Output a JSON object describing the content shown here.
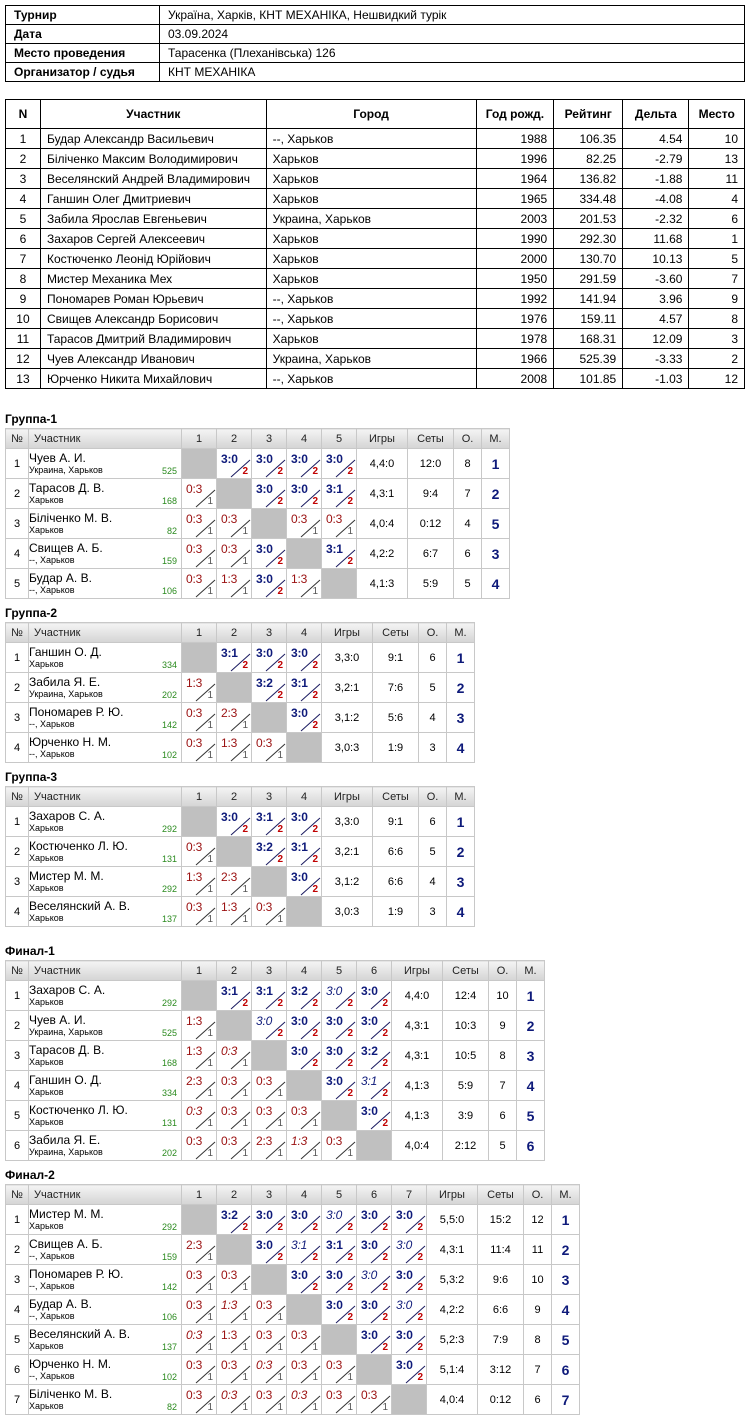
{
  "info": {
    "rows": [
      {
        "label": "Турнир",
        "value": "Україна, Харків, КНТ МЕХАНІКА, Нешвидкий турік"
      },
      {
        "label": "Дата",
        "value": "03.09.2024"
      },
      {
        "label": "Место проведения",
        "value": "Тарасенка (Плеханівська) 126"
      },
      {
        "label": "Организатор / судья",
        "value": "КНТ МЕХАНІКА"
      }
    ]
  },
  "participants": {
    "headers": [
      "N",
      "Участник",
      "Город",
      "Год рожд.",
      "Рейтинг",
      "Дельта",
      "Место"
    ],
    "rows": [
      [
        "1",
        "Будар Александр Васильевич",
        "--, Харьков",
        "1988",
        "106.35",
        "4.54",
        "10"
      ],
      [
        "2",
        "Біліченко Максим Володимирович",
        "Харьков",
        "1996",
        "82.25",
        "-2.79",
        "13"
      ],
      [
        "3",
        "Веселянский Андрей Владимирович",
        "Харьков",
        "1964",
        "136.82",
        "-1.88",
        "11"
      ],
      [
        "4",
        "Ганшин Олег Дмитриевич",
        "Харьков",
        "1965",
        "334.48",
        "-4.08",
        "4"
      ],
      [
        "5",
        "Забила Ярослав Евгеньевич",
        "Украина, Харьков",
        "2003",
        "201.53",
        "-2.32",
        "6"
      ],
      [
        "6",
        "Захаров Сергей Алексеевич",
        "Харьков",
        "1990",
        "292.30",
        "11.68",
        "1"
      ],
      [
        "7",
        "Костюченко Леонід Юрійович",
        "Харьков",
        "2000",
        "130.70",
        "10.13",
        "5"
      ],
      [
        "8",
        "Мистер Механика Мех",
        "Харьков",
        "1950",
        "291.59",
        "-3.60",
        "7"
      ],
      [
        "9",
        "Пономарев Роман Юрьевич",
        "--, Харьков",
        "1992",
        "141.94",
        "3.96",
        "9"
      ],
      [
        "10",
        "Свищев Александр Борисович",
        "--, Харьков",
        "1976",
        "159.11",
        "4.57",
        "8"
      ],
      [
        "11",
        "Тарасов Дмитрий Владимирович",
        "Харьков",
        "1978",
        "168.31",
        "12.09",
        "3"
      ],
      [
        "12",
        "Чуев Александр Иванович",
        "Украина, Харьков",
        "1966",
        "525.39",
        "-3.33",
        "2"
      ],
      [
        "13",
        "Юрченко Никита Михайлович",
        "--, Харьков",
        "2008",
        "101.85",
        "-1.03",
        "12"
      ]
    ]
  },
  "grid_headers": {
    "no": "№",
    "player": "Участник",
    "games": "Игры",
    "sets": "Сеты",
    "points": "О.",
    "place": "М."
  },
  "groups": [
    {
      "title": "Группа-1",
      "players": [
        {
          "no": "1",
          "name": "Чуев А. И.",
          "city": "Украина, Харьков",
          "rating": "525",
          "res": [
            null,
            "3:0|2|w",
            "3:0|2|w",
            "3:0|2|w",
            "3:0|2|w"
          ],
          "games": "4,4:0",
          "sets": "12:0",
          "points": "8",
          "place": "1"
        },
        {
          "no": "2",
          "name": "Тарасов Д. В.",
          "city": "Харьков",
          "rating": "168",
          "res": [
            "0:3|1|l",
            null,
            "3:0|2|w",
            "3:0|2|w",
            "3:1|2|w"
          ],
          "games": "4,3:1",
          "sets": "9:4",
          "points": "7",
          "place": "2"
        },
        {
          "no": "3",
          "name": "Біліченко М. В.",
          "city": "Харьков",
          "rating": "82",
          "res": [
            "0:3|1|l",
            "0:3|1|l",
            null,
            "0:3|1|l",
            "0:3|1|l"
          ],
          "games": "4,0:4",
          "sets": "0:12",
          "points": "4",
          "place": "5"
        },
        {
          "no": "4",
          "name": "Свищев А. Б.",
          "city": "--, Харьков",
          "rating": "159",
          "res": [
            "0:3|1|l",
            "0:3|1|l",
            "3:0|2|w",
            null,
            "3:1|2|w"
          ],
          "games": "4,2:2",
          "sets": "6:7",
          "points": "6",
          "place": "3"
        },
        {
          "no": "5",
          "name": "Будар А. В.",
          "city": "--, Харьков",
          "rating": "106",
          "res": [
            "0:3|1|l",
            "1:3|1|l",
            "3:0|2|w",
            "1:3|1|l",
            null
          ],
          "games": "4,1:3",
          "sets": "5:9",
          "points": "5",
          "place": "4"
        }
      ]
    },
    {
      "title": "Группа-2",
      "players": [
        {
          "no": "1",
          "name": "Ганшин О. Д.",
          "city": "Харьков",
          "rating": "334",
          "res": [
            null,
            "3:1|2|w",
            "3:0|2|w",
            "3:0|2|w"
          ],
          "games": "3,3:0",
          "sets": "9:1",
          "points": "6",
          "place": "1"
        },
        {
          "no": "2",
          "name": "Забила Я. Е.",
          "city": "Украина, Харьков",
          "rating": "202",
          "res": [
            "1:3|1|l",
            null,
            "3:2|2|w",
            "3:1|2|w"
          ],
          "games": "3,2:1",
          "sets": "7:6",
          "points": "5",
          "place": "2"
        },
        {
          "no": "3",
          "name": "Пономарев Р. Ю.",
          "city": "--, Харьков",
          "rating": "142",
          "res": [
            "0:3|1|l",
            "2:3|1|l",
            null,
            "3:0|2|w"
          ],
          "games": "3,1:2",
          "sets": "5:6",
          "points": "4",
          "place": "3"
        },
        {
          "no": "4",
          "name": "Юрченко Н. М.",
          "city": "--, Харьков",
          "rating": "102",
          "res": [
            "0:3|1|l",
            "1:3|1|l",
            "0:3|1|l",
            null
          ],
          "games": "3,0:3",
          "sets": "1:9",
          "points": "3",
          "place": "4"
        }
      ]
    },
    {
      "title": "Группа-3",
      "players": [
        {
          "no": "1",
          "name": "Захаров С. А.",
          "city": "Харьков",
          "rating": "292",
          "res": [
            null,
            "3:0|2|w",
            "3:1|2|w",
            "3:0|2|w"
          ],
          "games": "3,3:0",
          "sets": "9:1",
          "points": "6",
          "place": "1"
        },
        {
          "no": "2",
          "name": "Костюченко Л. Ю.",
          "city": "Харьков",
          "rating": "131",
          "res": [
            "0:3|1|l",
            null,
            "3:2|2|w",
            "3:1|2|w"
          ],
          "games": "3,2:1",
          "sets": "6:6",
          "points": "5",
          "place": "2"
        },
        {
          "no": "3",
          "name": "Мистер М. М.",
          "city": "Харьков",
          "rating": "292",
          "res": [
            "1:3|1|l",
            "2:3|1|l",
            null,
            "3:0|2|w"
          ],
          "games": "3,1:2",
          "sets": "6:6",
          "points": "4",
          "place": "3"
        },
        {
          "no": "4",
          "name": "Веселянский А. В.",
          "city": "Харьков",
          "rating": "137",
          "res": [
            "0:3|1|l",
            "1:3|1|l",
            "0:3|1|l",
            null
          ],
          "games": "3,0:3",
          "sets": "1:9",
          "points": "3",
          "place": "4"
        }
      ]
    },
    {
      "title": "Финал-1",
      "players": [
        {
          "no": "1",
          "name": "Захаров С. А.",
          "city": "Харьков",
          "rating": "292",
          "res": [
            null,
            "3:1|2|w",
            "3:1|2|w",
            "3:2|2|w",
            "3:0|2|wi",
            "3:0|2|w"
          ],
          "games": "4,4:0",
          "sets": "12:4",
          "points": "10",
          "place": "1"
        },
        {
          "no": "2",
          "name": "Чуев А. И.",
          "city": "Украина, Харьков",
          "rating": "525",
          "res": [
            "1:3|1|l",
            null,
            "3:0|2|wi",
            "3:0|2|w",
            "3:0|2|w",
            "3:0|2|w"
          ],
          "games": "4,3:1",
          "sets": "10:3",
          "points": "9",
          "place": "2"
        },
        {
          "no": "3",
          "name": "Тарасов Д. В.",
          "city": "Харьков",
          "rating": "168",
          "res": [
            "1:3|1|l",
            "0:3|1|li",
            null,
            "3:0|2|w",
            "3:0|2|w",
            "3:2|2|w"
          ],
          "games": "4,3:1",
          "sets": "10:5",
          "points": "8",
          "place": "3"
        },
        {
          "no": "4",
          "name": "Ганшин О. Д.",
          "city": "Харьков",
          "rating": "334",
          "res": [
            "2:3|1|l",
            "0:3|1|l",
            "0:3|1|l",
            null,
            "3:0|2|w",
            "3:1|2|wi"
          ],
          "games": "4,1:3",
          "sets": "5:9",
          "points": "7",
          "place": "4"
        },
        {
          "no": "5",
          "name": "Костюченко Л. Ю.",
          "city": "Харьков",
          "rating": "131",
          "res": [
            "0:3|1|li",
            "0:3|1|l",
            "0:3|1|l",
            "0:3|1|l",
            null,
            "3:0|2|w"
          ],
          "games": "4,1:3",
          "sets": "3:9",
          "points": "6",
          "place": "5"
        },
        {
          "no": "6",
          "name": "Забила Я. Е.",
          "city": "Украина, Харьков",
          "rating": "202",
          "res": [
            "0:3|1|l",
            "0:3|1|l",
            "2:3|1|l",
            "1:3|1|li",
            "0:3|1|l",
            null
          ],
          "games": "4,0:4",
          "sets": "2:12",
          "points": "5",
          "place": "6"
        }
      ]
    },
    {
      "title": "Финал-2",
      "players": [
        {
          "no": "1",
          "name": "Мистер М. М.",
          "city": "Харьков",
          "rating": "292",
          "res": [
            null,
            "3:2|2|w",
            "3:0|2|w",
            "3:0|2|w",
            "3:0|2|wi",
            "3:0|2|w",
            "3:0|2|w"
          ],
          "games": "5,5:0",
          "sets": "15:2",
          "points": "12",
          "place": "1"
        },
        {
          "no": "2",
          "name": "Свищев А. Б.",
          "city": "--, Харьков",
          "rating": "159",
          "res": [
            "2:3|1|l",
            null,
            "3:0|2|w",
            "3:1|2|wi",
            "3:1|2|w",
            "3:0|2|w",
            "3:0|2|wi"
          ],
          "games": "4,3:1",
          "sets": "11:4",
          "points": "11",
          "place": "2"
        },
        {
          "no": "3",
          "name": "Пономарев Р. Ю.",
          "city": "--, Харьков",
          "rating": "142",
          "res": [
            "0:3|1|l",
            "0:3|1|l",
            null,
            "3:0|2|w",
            "3:0|2|w",
            "3:0|2|wi",
            "3:0|2|w"
          ],
          "games": "5,3:2",
          "sets": "9:6",
          "points": "10",
          "place": "3"
        },
        {
          "no": "4",
          "name": "Будар А. В.",
          "city": "--, Харьков",
          "rating": "106",
          "res": [
            "0:3|1|l",
            "1:3|1|li",
            "0:3|1|l",
            null,
            "3:0|2|w",
            "3:0|2|w",
            "3:0|2|wi"
          ],
          "games": "4,2:2",
          "sets": "6:6",
          "points": "9",
          "place": "4"
        },
        {
          "no": "5",
          "name": "Веселянский А. В.",
          "city": "Харьков",
          "rating": "137",
          "res": [
            "0:3|1|li",
            "1:3|1|l",
            "0:3|1|l",
            "0:3|1|l",
            null,
            "3:0|2|w",
            "3:0|2|w"
          ],
          "games": "5,2:3",
          "sets": "7:9",
          "points": "8",
          "place": "5"
        },
        {
          "no": "6",
          "name": "Юрченко Н. М.",
          "city": "--, Харьков",
          "rating": "102",
          "res": [
            "0:3|1|l",
            "0:3|1|l",
            "0:3|1|li",
            "0:3|1|l",
            "0:3|1|l",
            null,
            "3:0|2|w"
          ],
          "games": "5,1:4",
          "sets": "3:12",
          "points": "7",
          "place": "6"
        },
        {
          "no": "7",
          "name": "Біліченко М. В.",
          "city": "Харьков",
          "rating": "82",
          "res": [
            "0:3|1|l",
            "0:3|1|li",
            "0:3|1|l",
            "0:3|1|li",
            "0:3|1|l",
            "0:3|1|l",
            null
          ],
          "games": "4,0:4",
          "sets": "0:12",
          "points": "6",
          "place": "7"
        }
      ]
    }
  ]
}
